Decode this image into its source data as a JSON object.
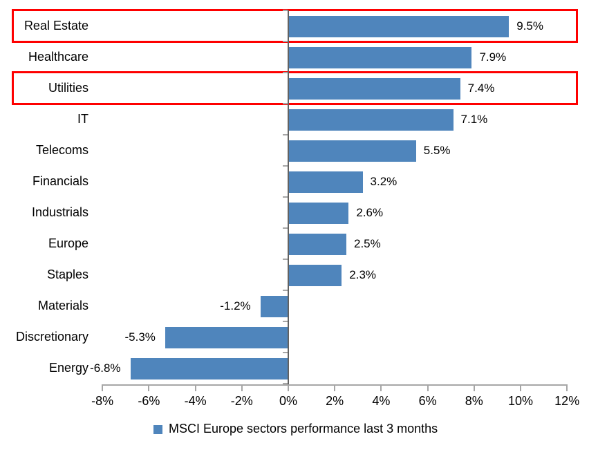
{
  "chart_data": {
    "type": "bar",
    "orientation": "horizontal",
    "title": "",
    "legend": "MSCI Europe sectors performance last 3 months",
    "legend_position": "bottom",
    "grid": false,
    "categories": [
      "Real Estate",
      "Healthcare",
      "Utilities",
      "IT",
      "Telecoms",
      "Financials",
      "Industrials",
      "Europe",
      "Staples",
      "Materials",
      "Discretionary",
      "Energy"
    ],
    "values": [
      9.5,
      7.9,
      7.4,
      7.1,
      5.5,
      3.2,
      2.6,
      2.5,
      2.3,
      -1.2,
      -5.3,
      -6.8
    ],
    "value_labels": [
      "9.5%",
      "7.9%",
      "7.4%",
      "7.1%",
      "5.5%",
      "3.2%",
      "2.6%",
      "2.5%",
      "2.3%",
      "-1.2%",
      "-5.3%",
      "-6.8%"
    ],
    "xlim": [
      -8,
      12
    ],
    "x_tick_values": [
      -8,
      -6,
      -4,
      -2,
      0,
      2,
      4,
      6,
      8,
      10,
      12
    ],
    "x_tick_labels": [
      "-8%",
      "-6%",
      "-4%",
      "-2%",
      "0%",
      "2%",
      "4%",
      "6%",
      "8%",
      "10%",
      "12%"
    ],
    "highlighted_categories": [
      "Real Estate",
      "Utilities"
    ],
    "colors": {
      "bar": "#4f85bc",
      "highlight_border": "#fe0000",
      "value_axis_line": "#a6a6a6",
      "category_axis_line": "#626262",
      "text": "#000000"
    }
  }
}
